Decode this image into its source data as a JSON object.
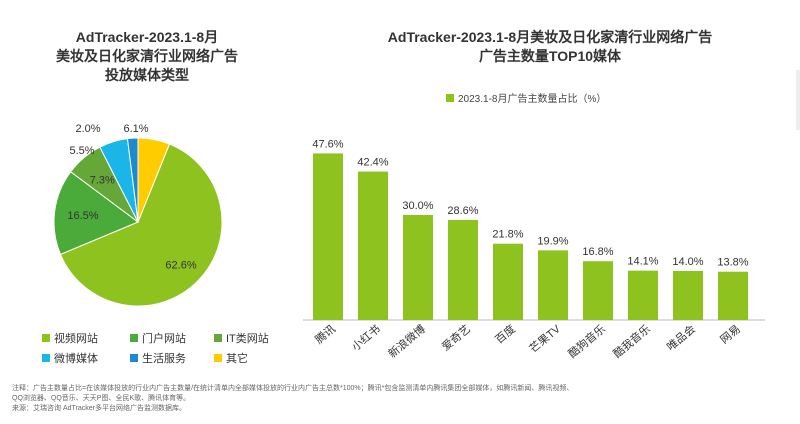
{
  "pie": {
    "title_line1": "AdTracker-2023.1-8月",
    "title_line2": "美妆及日化家清行业网络广告",
    "title_line3": "投放媒体类型"
  },
  "bar": {
    "title_line1": "AdTracker-2023.1-8月美妆及日化家清行业网络广告",
    "title_line2": "广告主数量TOP10媒体",
    "legend_label": "2023.1-8月广告主数量占比（%）"
  },
  "colors": {
    "video": "#8ec31f",
    "portal": "#4aaa3a",
    "it": "#66a838",
    "weibo": "#1ab6e8",
    "life": "#1e88d0",
    "other": "#ffcc00",
    "bar": "#8ec31f"
  },
  "chart_data": [
    {
      "type": "pie",
      "labels": [
        "视频网站",
        "门户网站",
        "IT类网站",
        "微博媒体",
        "生活服务",
        "其它"
      ],
      "values": [
        62.6,
        16.5,
        7.3,
        5.5,
        2.0,
        6.1
      ],
      "value_labels": [
        "62.6%",
        "16.5%",
        "7.3%",
        "5.5%",
        "2.0%",
        "6.1%"
      ],
      "legend_placement": "bottom"
    },
    {
      "type": "bar",
      "categories": [
        "腾讯",
        "小红书",
        "新浪微博",
        "爱奇艺",
        "百度",
        "芒果TV",
        "酷狗音乐",
        "酷我音乐",
        "唯品会",
        "网易"
      ],
      "values": [
        47.6,
        42.4,
        30.0,
        28.6,
        21.8,
        19.9,
        16.8,
        14.1,
        14.0,
        13.8
      ],
      "value_labels": [
        "47.6%",
        "42.4%",
        "30.0%",
        "28.6%",
        "21.8%",
        "19.9%",
        "16.8%",
        "14.1%",
        "14.0%",
        "13.8%"
      ],
      "legend_placement": "top"
    }
  ],
  "footnote": {
    "line1": "注释：广告主数量占比=在该媒体投放的行业内广告主数量/在统计清单内全部媒体投放的行业内广告主总数*100%；腾讯*包含监测清单内腾讯集团全部媒体，如腾讯新闻、腾讯视频、",
    "line2": "QQ浏览器、QQ音乐、天天P图、全民K歌、腾讯体育等。",
    "line3": "来源：艾瑞咨询 AdTracker多平台网络广告监测数据库。"
  }
}
